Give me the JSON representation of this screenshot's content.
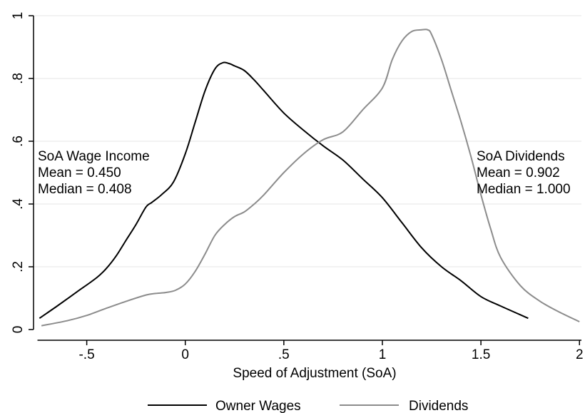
{
  "chart_data": {
    "type": "line",
    "title": "",
    "xlabel": "Speed of Adjustment (SoA)",
    "ylabel": "",
    "xlim": [
      -0.77,
      2.01
    ],
    "ylim": [
      0,
      1.0
    ],
    "xticks": [
      -0.5,
      0,
      0.5,
      1,
      1.5,
      2
    ],
    "xtick_labels": [
      "-.5",
      "0",
      ".5",
      "1",
      "1.5",
      "2"
    ],
    "yticks": [
      0,
      0.2,
      0.4,
      0.6,
      0.8,
      1
    ],
    "ytick_labels": [
      "0",
      ".2",
      ".4",
      ".6",
      ".8",
      "1"
    ],
    "grid": "horizontal",
    "legend_position": "bottom",
    "series": [
      {
        "name": "Owner Wages",
        "color": "#000000",
        "x": [
          -0.74,
          -0.65,
          -0.55,
          -0.45,
          -0.4,
          -0.35,
          -0.3,
          -0.25,
          -0.2,
          -0.17,
          -0.12,
          -0.06,
          0.0,
          0.05,
          0.1,
          0.15,
          0.19,
          0.22,
          0.25,
          0.3,
          0.35,
          0.4,
          0.5,
          0.6,
          0.7,
          0.8,
          0.9,
          1.0,
          1.1,
          1.2,
          1.3,
          1.4,
          1.5,
          1.6,
          1.74
        ],
        "y": [
          0.036,
          0.075,
          0.12,
          0.165,
          0.195,
          0.235,
          0.285,
          0.335,
          0.39,
          0.405,
          0.43,
          0.47,
          0.56,
          0.66,
          0.76,
          0.83,
          0.85,
          0.848,
          0.84,
          0.825,
          0.795,
          0.76,
          0.69,
          0.635,
          0.585,
          0.54,
          0.48,
          0.42,
          0.34,
          0.26,
          0.2,
          0.155,
          0.105,
          0.075,
          0.036
        ]
      },
      {
        "name": "Dividends",
        "color": "#8c8c8c",
        "x": [
          -0.73,
          -0.6,
          -0.5,
          -0.4,
          -0.3,
          -0.2,
          -0.15,
          -0.1,
          -0.05,
          0.0,
          0.05,
          0.1,
          0.15,
          0.2,
          0.25,
          0.3,
          0.35,
          0.4,
          0.5,
          0.6,
          0.7,
          0.8,
          0.9,
          1.0,
          1.05,
          1.1,
          1.15,
          1.2,
          1.23,
          1.25,
          1.3,
          1.35,
          1.4,
          1.45,
          1.5,
          1.55,
          1.6,
          1.7,
          1.8,
          1.9,
          2.0
        ],
        "y": [
          0.012,
          0.028,
          0.045,
          0.068,
          0.09,
          0.11,
          0.115,
          0.118,
          0.125,
          0.145,
          0.185,
          0.24,
          0.3,
          0.335,
          0.36,
          0.375,
          0.4,
          0.43,
          0.5,
          0.56,
          0.605,
          0.63,
          0.7,
          0.77,
          0.86,
          0.92,
          0.95,
          0.955,
          0.955,
          0.94,
          0.86,
          0.76,
          0.66,
          0.55,
          0.43,
          0.32,
          0.23,
          0.14,
          0.09,
          0.055,
          0.025
        ]
      }
    ],
    "annotations": [
      {
        "lines": [
          "SoA Wage Income",
          "Mean = 0.450",
          "Median = 0.408"
        ]
      },
      {
        "lines": [
          "SoA Dividends",
          "Mean = 0.902",
          "Median = 1.000"
        ]
      }
    ]
  }
}
